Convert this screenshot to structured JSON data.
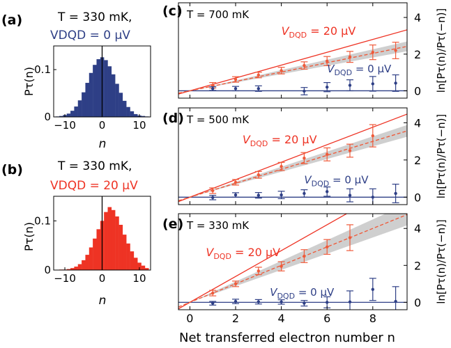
{
  "colors": {
    "blue": "#2e3f86",
    "red": "#ee3324",
    "salmon": "#ef5a3a",
    "gray_band": "#cfcfcf",
    "axis": "#000000"
  },
  "chart_data": [
    {
      "panel": "(a)",
      "type": "bar",
      "title_line1": "T = 330 mK,",
      "title_line2": "VDQD = 0 μV",
      "xlabel": "n",
      "ylabel": "Pτ(n)",
      "x_ticks": [
        "−10",
        "0",
        "10"
      ],
      "y_ticks": [
        "0",
        "0.1"
      ],
      "xlim": [
        -13,
        13
      ],
      "ylim": [
        0,
        0.15
      ],
      "bar_color": "#2e3f86",
      "x": [
        -12,
        -11,
        -10,
        -9,
        -8,
        -7,
        -6,
        -5,
        -4,
        -3,
        -2,
        -1,
        0,
        1,
        2,
        3,
        4,
        5,
        6,
        7,
        8,
        9,
        10,
        11,
        12
      ],
      "values": [
        0.001,
        0.002,
        0.004,
        0.007,
        0.013,
        0.022,
        0.035,
        0.052,
        0.072,
        0.093,
        0.11,
        0.122,
        0.126,
        0.12,
        0.107,
        0.09,
        0.07,
        0.051,
        0.034,
        0.021,
        0.012,
        0.006,
        0.003,
        0.002,
        0.001
      ]
    },
    {
      "panel": "(b)",
      "type": "bar",
      "title_line1": "T = 330 mK,",
      "title_line2": "VDQD = 20 μV",
      "xlabel": "n",
      "ylabel": "Pτ(n)",
      "x_ticks": [
        "−10",
        "0",
        "10"
      ],
      "y_ticks": [
        "0",
        "0.1"
      ],
      "xlim": [
        -13,
        13
      ],
      "ylim": [
        0,
        0.15
      ],
      "bar_color": "#ee3324",
      "x": [
        -12,
        -11,
        -10,
        -9,
        -8,
        -7,
        -6,
        -5,
        -4,
        -3,
        -2,
        -1,
        0,
        1,
        2,
        3,
        4,
        5,
        6,
        7,
        8,
        9,
        10,
        11,
        12
      ],
      "values": [
        0,
        0.001,
        0.001,
        0.002,
        0.004,
        0.007,
        0.012,
        0.02,
        0.031,
        0.046,
        0.064,
        0.083,
        0.1,
        0.118,
        0.128,
        0.122,
        0.109,
        0.092,
        0.072,
        0.054,
        0.038,
        0.025,
        0.015,
        0.009,
        0.004
      ]
    },
    {
      "panel": "(c)",
      "type": "scatter",
      "temperature_label": "T = 700 mK",
      "xlim": [
        -0.5,
        9.5
      ],
      "ylim": [
        -0.4,
        4.8
      ],
      "y_ticks": [
        "0",
        "2",
        "4"
      ],
      "right_ylabel": "ln[Pτ(n)/Pτ(−n)]",
      "label_red": "VDQD = 20 μV",
      "label_blue": "VDQD = 0 μV",
      "theory_red_slope": 0.35,
      "fit_red_slope": 0.255,
      "band_halfwidth_at_9": 0.25,
      "red_series": {
        "x": [
          1,
          2,
          3,
          4,
          5,
          6,
          7,
          8,
          9
        ],
        "y": [
          0.3,
          0.62,
          0.86,
          1.1,
          1.38,
          1.62,
          1.85,
          2.1,
          2.2
        ],
        "err": [
          0.15,
          0.15,
          0.15,
          0.18,
          0.2,
          0.25,
          0.3,
          0.4,
          0.45
        ]
      },
      "blue_series": {
        "x": [
          1,
          2,
          3,
          5,
          6,
          7,
          8,
          9
        ],
        "y": [
          0.12,
          0.12,
          0.12,
          -0.02,
          0.2,
          0.3,
          0.38,
          0.42
        ],
        "err": [
          0.1,
          0.12,
          0.15,
          0.2,
          0.25,
          0.3,
          0.4,
          0.45
        ]
      }
    },
    {
      "panel": "(d)",
      "type": "scatter",
      "temperature_label": "T = 500 mK",
      "xlim": [
        -0.5,
        9.5
      ],
      "ylim": [
        -0.4,
        4.8
      ],
      "y_ticks": [
        "0",
        "2",
        "4"
      ],
      "right_ylabel": "ln[Pτ(n)/Pτ(−n)]",
      "label_red": "VDQD = 20 μV",
      "label_blue": "VDQD = 0 μV",
      "theory_red_slope": 0.47,
      "fit_red_slope": 0.375,
      "band_halfwidth_at_9": 0.3,
      "red_series": {
        "x": [
          1,
          2,
          3,
          4,
          5,
          6,
          7,
          8
        ],
        "y": [
          0.35,
          0.8,
          1.2,
          1.65,
          2.1,
          2.3,
          2.5,
          3.3
        ],
        "err": [
          0.15,
          0.15,
          0.18,
          0.22,
          0.3,
          0.35,
          0.35,
          0.6
        ]
      },
      "blue_series": {
        "x": [
          1,
          2,
          3,
          4,
          5,
          6,
          7,
          8,
          9
        ],
        "y": [
          -0.02,
          0.12,
          0.1,
          0.12,
          0.2,
          0.3,
          0.1,
          0.0,
          0.2
        ],
        "err": [
          0.12,
          0.12,
          0.15,
          0.2,
          0.2,
          0.25,
          0.35,
          0.45,
          0.5
        ]
      }
    },
    {
      "panel": "(e)",
      "type": "scatter",
      "temperature_label": "T = 330 mK",
      "xlim": [
        -0.5,
        9.5
      ],
      "ylim": [
        -0.4,
        4.8
      ],
      "y_ticks": [
        "0",
        "2",
        "4"
      ],
      "right_ylabel": "ln[Pτ(n)/Pτ(−n)]",
      "label_red": "VDQD = 20 μV",
      "label_blue": "VDQD = 0 μV",
      "theory_red_slope": 0.7,
      "fit_red_slope": 0.5,
      "band_halfwidth_at_9": 0.55,
      "red_series": {
        "x": [
          1,
          2,
          3,
          4,
          5,
          6,
          7
        ],
        "y": [
          0.5,
          1.0,
          1.7,
          1.95,
          2.5,
          3.0,
          3.5
        ],
        "err": [
          0.15,
          0.15,
          0.2,
          0.25,
          0.35,
          0.4,
          0.7
        ]
      },
      "blue_series": {
        "x": [
          1,
          2,
          3,
          4,
          5,
          6,
          7,
          8,
          9
        ],
        "y": [
          -0.05,
          0.05,
          0.03,
          0.02,
          -0.05,
          0.0,
          0.02,
          0.7,
          0.05
        ],
        "err": [
          0.1,
          0.12,
          0.12,
          0.12,
          0.15,
          0.3,
          0.6,
          0.6,
          0.8
        ]
      }
    }
  ],
  "shared_xlabel": "Net transferred electron number n",
  "shared_x_ticks": [
    "0",
    "2",
    "4",
    "6",
    "8"
  ]
}
